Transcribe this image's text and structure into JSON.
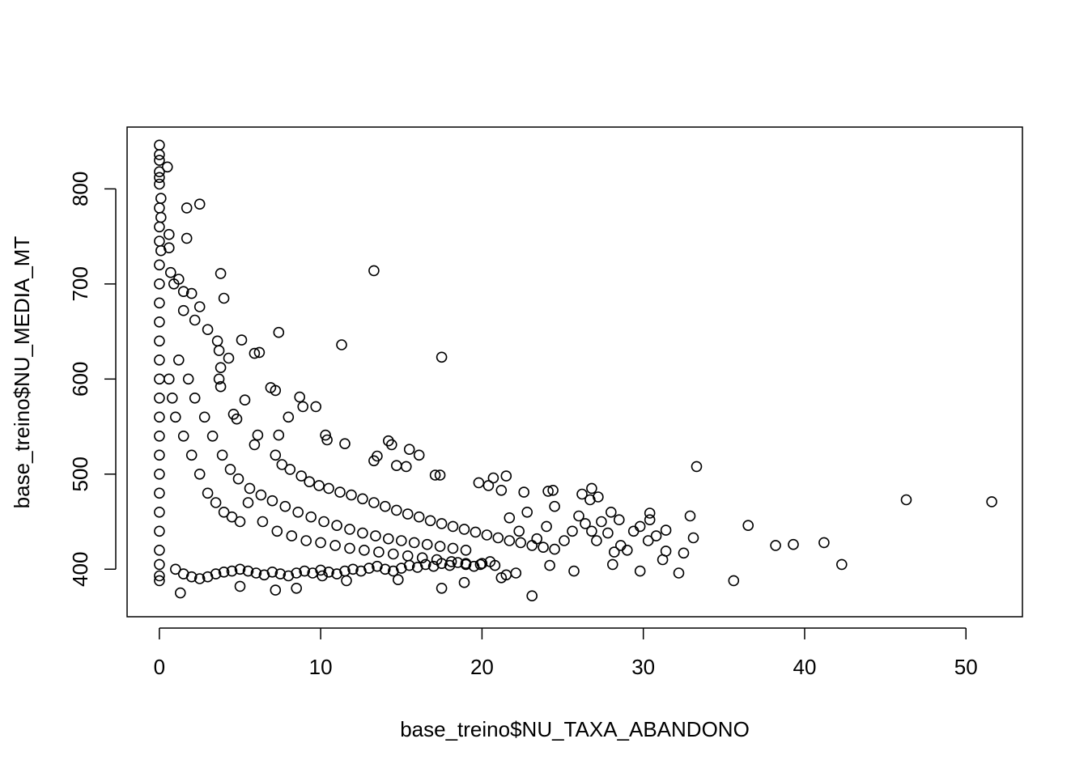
{
  "chart_data": {
    "type": "scatter",
    "title": "",
    "xlabel": "base_treino$NU_TAXA_ABANDONO",
    "ylabel": "base_treino$NU_MEDIA_MT",
    "xlim": [
      -2,
      53.5
    ],
    "ylim": [
      350,
      865
    ],
    "x_ticks": [
      0,
      10,
      20,
      30,
      40,
      50
    ],
    "y_ticks": [
      400,
      500,
      600,
      700,
      800
    ],
    "x_tick_labels": [
      "0",
      "10",
      "20",
      "30",
      "40",
      "50"
    ],
    "y_tick_labels": [
      "400",
      "500",
      "600",
      "700",
      "800"
    ],
    "grid": false,
    "legend": "none",
    "marker": "open-circle",
    "colors": {
      "point": "#000000",
      "axis": "#000000",
      "background": "#ffffff"
    },
    "series": [
      {
        "points": [
          [
            0,
            846
          ],
          [
            0,
            836
          ],
          [
            0,
            830
          ],
          [
            0,
            818
          ],
          [
            0,
            812
          ],
          [
            0,
            805
          ],
          [
            0.1,
            790
          ],
          [
            0,
            780
          ],
          [
            0.1,
            770
          ],
          [
            0,
            760
          ],
          [
            0,
            745
          ],
          [
            0.1,
            735
          ],
          [
            0,
            720
          ],
          [
            0,
            700
          ],
          [
            0,
            680
          ],
          [
            0,
            660
          ],
          [
            0,
            640
          ],
          [
            0,
            620
          ],
          [
            0,
            600
          ],
          [
            0,
            580
          ],
          [
            0,
            560
          ],
          [
            0,
            540
          ],
          [
            0,
            520
          ],
          [
            0,
            500
          ],
          [
            0,
            480
          ],
          [
            0,
            460
          ],
          [
            0,
            440
          ],
          [
            0,
            420
          ],
          [
            0,
            405
          ],
          [
            0,
            393
          ],
          [
            0,
            388
          ],
          [
            0.5,
            823
          ],
          [
            0.6,
            752
          ],
          [
            0.6,
            738
          ],
          [
            1.7,
            780
          ],
          [
            2.5,
            784
          ],
          [
            1.7,
            748
          ],
          [
            3.8,
            711
          ],
          [
            4,
            685
          ],
          [
            1.5,
            692
          ],
          [
            2,
            690
          ],
          [
            2.5,
            676
          ],
          [
            1.2,
            705
          ],
          [
            0.9,
            700
          ],
          [
            0.7,
            712
          ],
          [
            1.5,
            672
          ],
          [
            2.2,
            662
          ],
          [
            3,
            652
          ],
          [
            13.3,
            714
          ],
          [
            7.4,
            649
          ],
          [
            11.3,
            636
          ],
          [
            17.5,
            623
          ],
          [
            5.9,
            627
          ],
          [
            6.2,
            628
          ],
          [
            5.1,
            641
          ],
          [
            4.3,
            622
          ],
          [
            3.6,
            640
          ],
          [
            3.7,
            630
          ],
          [
            3.8,
            612
          ],
          [
            3.7,
            600
          ],
          [
            3.8,
            592
          ],
          [
            6.9,
            591
          ],
          [
            7.2,
            588
          ],
          [
            8.7,
            581
          ],
          [
            9.7,
            571
          ],
          [
            8.9,
            571
          ],
          [
            8,
            560
          ],
          [
            5.3,
            578
          ],
          [
            4.8,
            558
          ],
          [
            4.6,
            563
          ],
          [
            6.1,
            541
          ],
          [
            5.9,
            531
          ],
          [
            7.4,
            541
          ],
          [
            10.3,
            541
          ],
          [
            10.4,
            536
          ],
          [
            11.5,
            532
          ],
          [
            14.4,
            531
          ],
          [
            14.2,
            535
          ],
          [
            13.5,
            519
          ],
          [
            13.3,
            514
          ],
          [
            15.5,
            526
          ],
          [
            16.1,
            520
          ],
          [
            15.3,
            508
          ],
          [
            14.7,
            509
          ],
          [
            17.1,
            499
          ],
          [
            17.4,
            499
          ],
          [
            21.5,
            498
          ],
          [
            19.8,
            491
          ],
          [
            20.4,
            488
          ],
          [
            20.7,
            496
          ],
          [
            21.2,
            483
          ],
          [
            22.6,
            481
          ],
          [
            24.1,
            482
          ],
          [
            24.4,
            483
          ],
          [
            26.8,
            485
          ],
          [
            33.3,
            508
          ],
          [
            7.2,
            520
          ],
          [
            7.6,
            510
          ],
          [
            8.1,
            505
          ],
          [
            8.8,
            498
          ],
          [
            9.3,
            492
          ],
          [
            9.9,
            488
          ],
          [
            10.5,
            485
          ],
          [
            11.2,
            481
          ],
          [
            11.9,
            478
          ],
          [
            12.6,
            474
          ],
          [
            13.3,
            470
          ],
          [
            14,
            466
          ],
          [
            14.7,
            462
          ],
          [
            15.4,
            458
          ],
          [
            16.1,
            455
          ],
          [
            16.8,
            451
          ],
          [
            17.5,
            448
          ],
          [
            18.2,
            445
          ],
          [
            18.9,
            442
          ],
          [
            19.6,
            439
          ],
          [
            20.3,
            436
          ],
          [
            21,
            433
          ],
          [
            21.7,
            430
          ],
          [
            22.4,
            428
          ],
          [
            23.1,
            425
          ],
          [
            23.8,
            423
          ],
          [
            24.5,
            421
          ],
          [
            5.5,
            470
          ],
          [
            6.4,
            450
          ],
          [
            7.3,
            440
          ],
          [
            8.2,
            435
          ],
          [
            9.1,
            430
          ],
          [
            10,
            428
          ],
          [
            10.9,
            425
          ],
          [
            11.8,
            422
          ],
          [
            12.7,
            420
          ],
          [
            13.6,
            418
          ],
          [
            14.5,
            416
          ],
          [
            15.4,
            414
          ],
          [
            16.3,
            412
          ],
          [
            17.2,
            410
          ],
          [
            18.1,
            408
          ],
          [
            19,
            406
          ],
          [
            19.9,
            405
          ],
          [
            20.8,
            404
          ],
          [
            3,
            480
          ],
          [
            3.5,
            470
          ],
          [
            4,
            460
          ],
          [
            4.5,
            455
          ],
          [
            5,
            450
          ],
          [
            2.5,
            500
          ],
          [
            2,
            520
          ],
          [
            1.5,
            540
          ],
          [
            1,
            560
          ],
          [
            0.8,
            580
          ],
          [
            0.6,
            600
          ],
          [
            1.2,
            620
          ],
          [
            1.8,
            600
          ],
          [
            2.2,
            580
          ],
          [
            2.8,
            560
          ],
          [
            3.3,
            540
          ],
          [
            3.9,
            520
          ],
          [
            4.4,
            505
          ],
          [
            4.9,
            495
          ],
          [
            5.6,
            485
          ],
          [
            6.3,
            478
          ],
          [
            7,
            472
          ],
          [
            7.8,
            466
          ],
          [
            8.6,
            460
          ],
          [
            9.4,
            455
          ],
          [
            10.2,
            450
          ],
          [
            11,
            446
          ],
          [
            11.8,
            442
          ],
          [
            12.6,
            438
          ],
          [
            13.4,
            435
          ],
          [
            14.2,
            432
          ],
          [
            15,
            430
          ],
          [
            15.8,
            428
          ],
          [
            16.6,
            426
          ],
          [
            17.4,
            424
          ],
          [
            18.2,
            422
          ],
          [
            19,
            420
          ],
          [
            1,
            400
          ],
          [
            1.5,
            395
          ],
          [
            2,
            392
          ],
          [
            2.5,
            390
          ],
          [
            3,
            392
          ],
          [
            3.5,
            395
          ],
          [
            4,
            397
          ],
          [
            4.5,
            398
          ],
          [
            5,
            400
          ],
          [
            5.5,
            398
          ],
          [
            6,
            396
          ],
          [
            6.5,
            394
          ],
          [
            7,
            397
          ],
          [
            7.5,
            395
          ],
          [
            8,
            393
          ],
          [
            8.5,
            396
          ],
          [
            9,
            398
          ],
          [
            9.5,
            396
          ],
          [
            10,
            399
          ],
          [
            10.5,
            397
          ],
          [
            11,
            395
          ],
          [
            11.5,
            398
          ],
          [
            12,
            400
          ],
          [
            12.5,
            398
          ],
          [
            13,
            401
          ],
          [
            13.5,
            403
          ],
          [
            14,
            400
          ],
          [
            14.5,
            398
          ],
          [
            15,
            401
          ],
          [
            15.5,
            404
          ],
          [
            16,
            402
          ],
          [
            16.5,
            405
          ],
          [
            17,
            403
          ],
          [
            17.5,
            406
          ],
          [
            18,
            404
          ],
          [
            18.5,
            407
          ],
          [
            19,
            405
          ],
          [
            19.5,
            403
          ],
          [
            20,
            406
          ],
          [
            20.5,
            408
          ],
          [
            1.3,
            375
          ],
          [
            5,
            382
          ],
          [
            7.2,
            378
          ],
          [
            8.5,
            380
          ],
          [
            10.1,
            393
          ],
          [
            11.6,
            388
          ],
          [
            14.8,
            389
          ],
          [
            17.5,
            380
          ],
          [
            18.9,
            386
          ],
          [
            21.2,
            391
          ],
          [
            21.5,
            394
          ],
          [
            22.1,
            396
          ],
          [
            23.1,
            372
          ],
          [
            24.2,
            404
          ],
          [
            25.7,
            398
          ],
          [
            28.1,
            405
          ],
          [
            29.8,
            398
          ],
          [
            21.7,
            454
          ],
          [
            22.3,
            440
          ],
          [
            22.8,
            460
          ],
          [
            23.4,
            432
          ],
          [
            24,
            445
          ],
          [
            24.5,
            466
          ],
          [
            25.1,
            430
          ],
          [
            25.6,
            440
          ],
          [
            26,
            456
          ],
          [
            26.4,
            448
          ],
          [
            26.8,
            440
          ],
          [
            27.1,
            430
          ],
          [
            27.4,
            450
          ],
          [
            27.8,
            438
          ],
          [
            28.2,
            418
          ],
          [
            28.6,
            425
          ],
          [
            29,
            420
          ],
          [
            29.4,
            440
          ],
          [
            29.8,
            445
          ],
          [
            26.2,
            479
          ],
          [
            26.7,
            473
          ],
          [
            27.2,
            476
          ],
          [
            28,
            460
          ],
          [
            28.5,
            452
          ],
          [
            30.4,
            459
          ],
          [
            30.4,
            452
          ],
          [
            31.4,
            441
          ],
          [
            31.2,
            410
          ],
          [
            31.4,
            419
          ],
          [
            32.2,
            396
          ],
          [
            32.5,
            417
          ],
          [
            32.9,
            456
          ],
          [
            33.1,
            433
          ],
          [
            30.8,
            435
          ],
          [
            30.3,
            430
          ],
          [
            35.6,
            388
          ],
          [
            36.5,
            446
          ],
          [
            38.2,
            425
          ],
          [
            39.3,
            426
          ],
          [
            41.2,
            428
          ],
          [
            42.3,
            405
          ],
          [
            46.3,
            473
          ],
          [
            51.6,
            471
          ]
        ]
      }
    ]
  }
}
